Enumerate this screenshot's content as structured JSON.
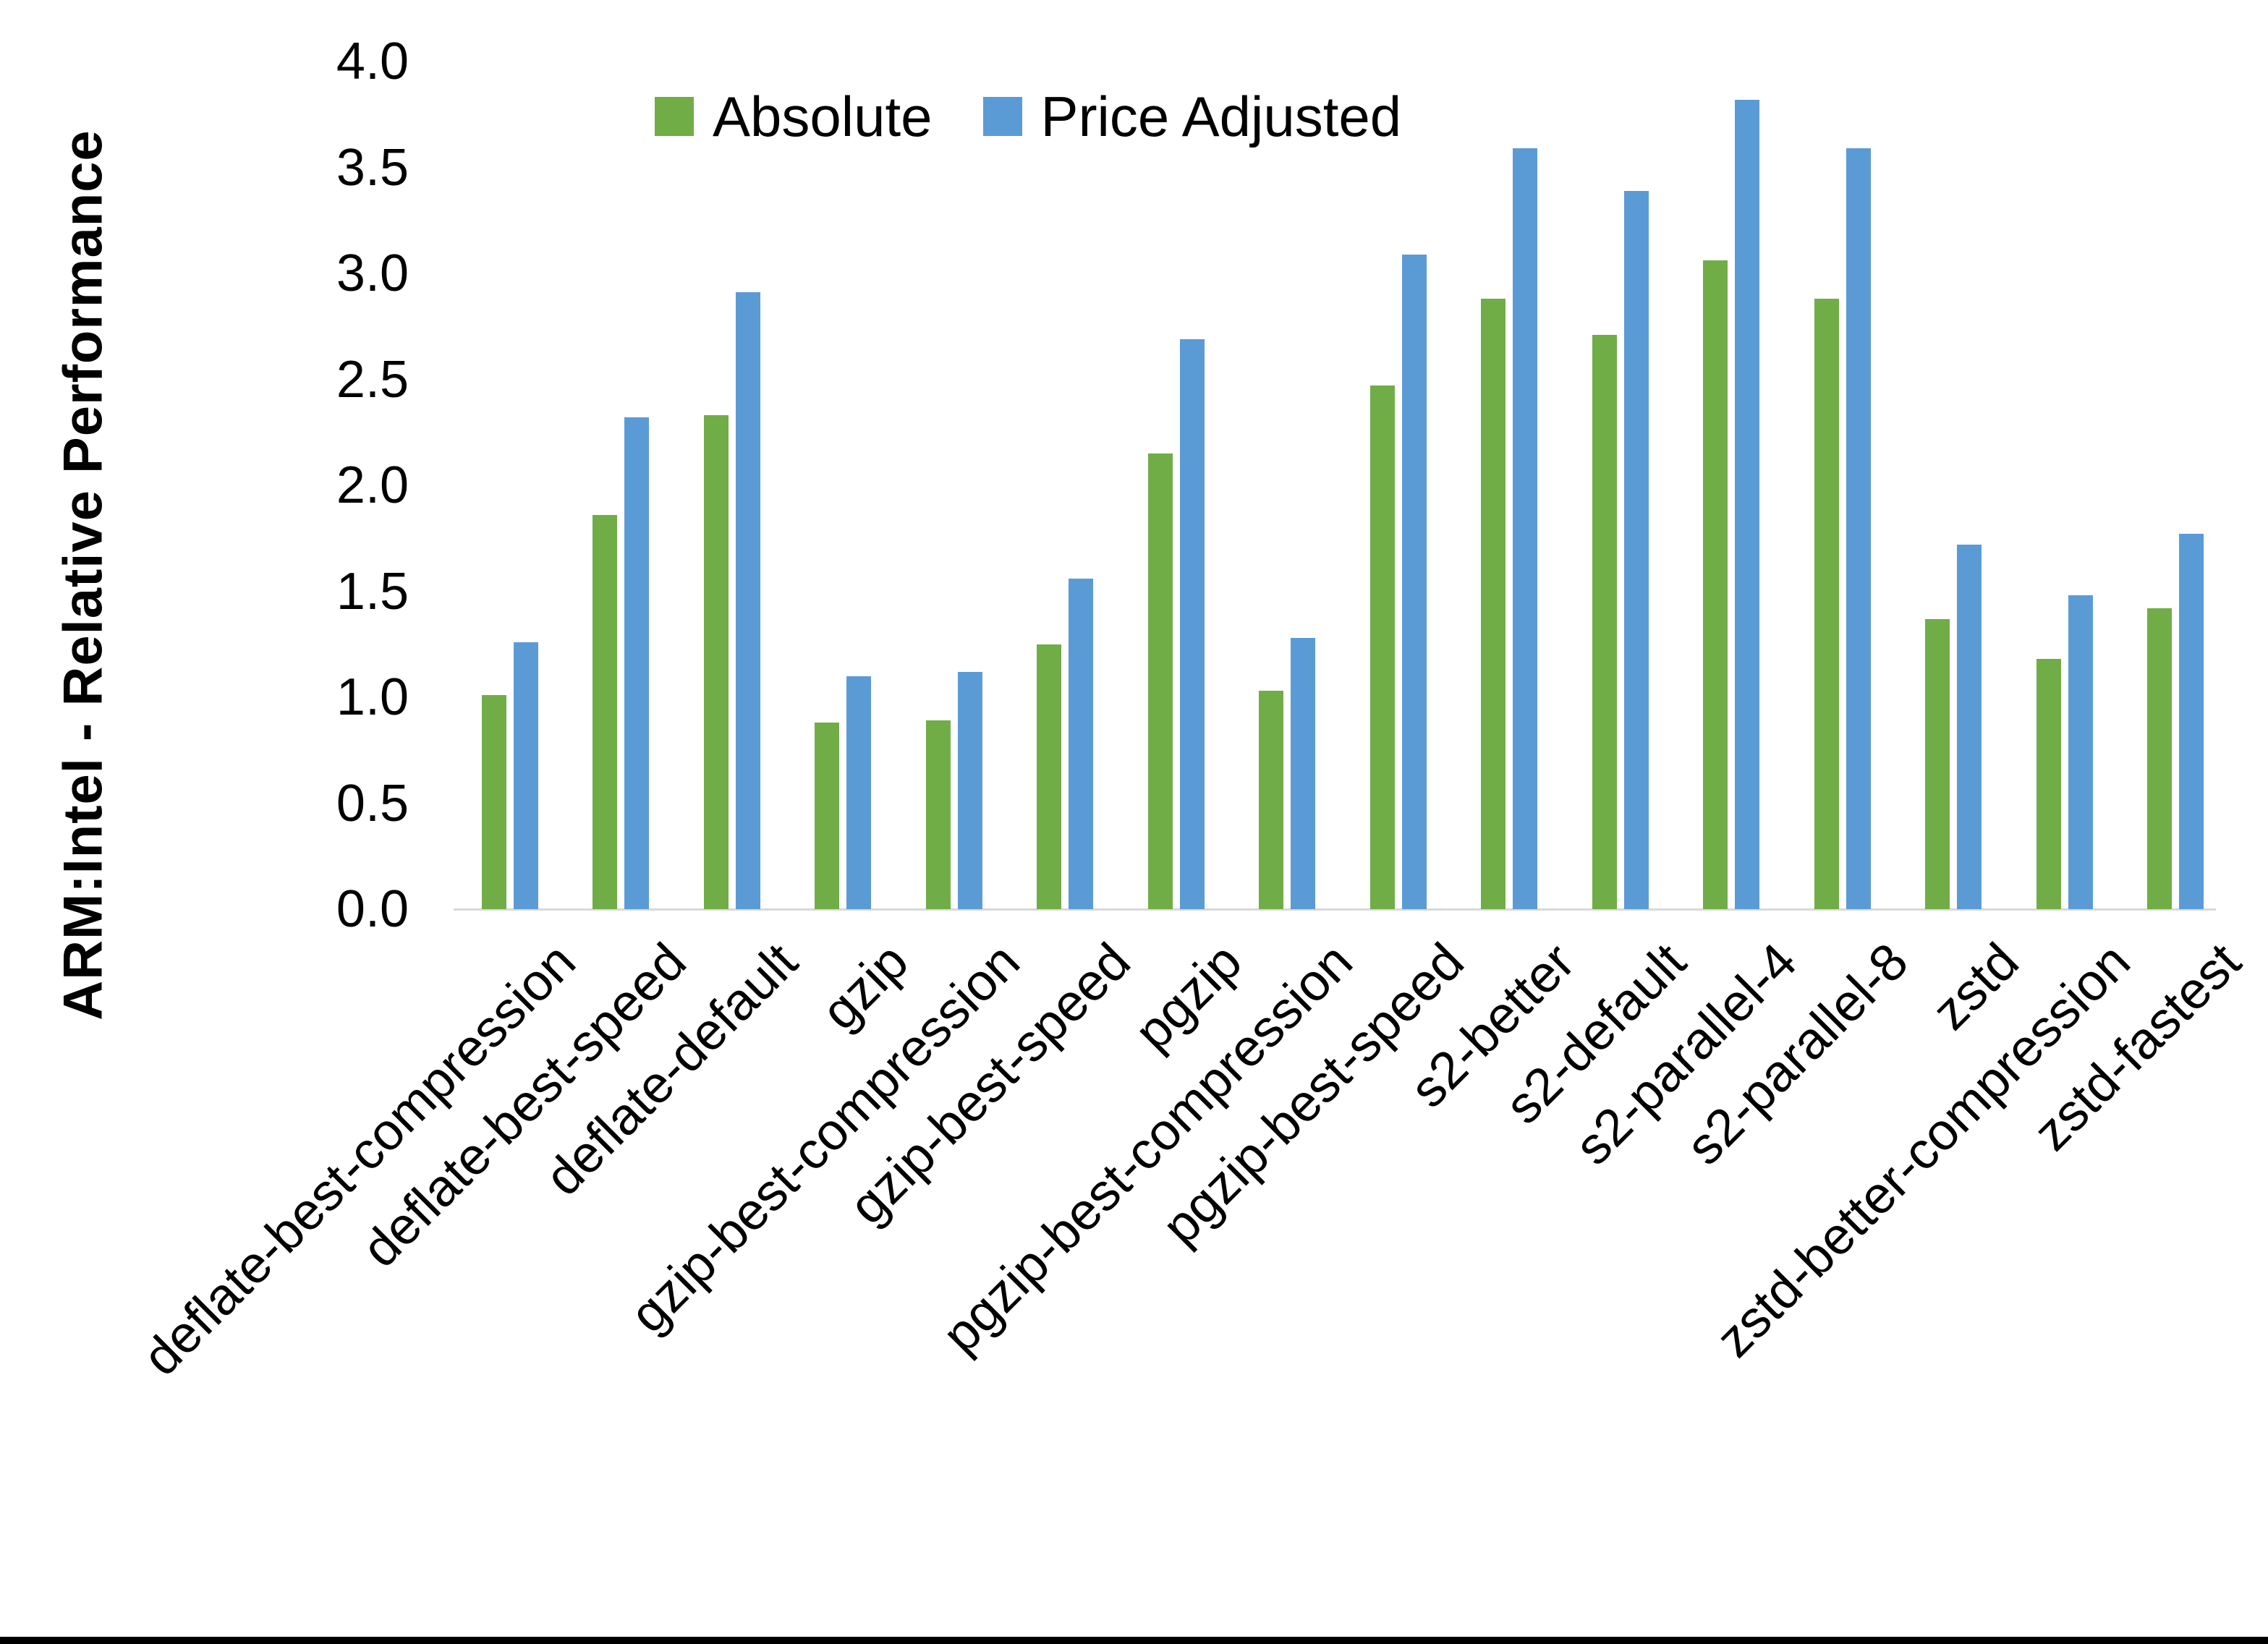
{
  "chart_data": {
    "type": "bar",
    "title": "",
    "ylabel": "ARM:Intel - Relative Performance",
    "xlabel": "",
    "ylim": [
      0.0,
      4.0
    ],
    "ytick_step": 0.5,
    "ytick_labels": [
      "0.0",
      "0.5",
      "1.0",
      "1.5",
      "2.0",
      "2.5",
      "3.0",
      "3.5",
      "4.0"
    ],
    "grid": false,
    "legend_position": "top-center",
    "axis_line_color": "#d9d9d9",
    "background_color": "#ffffff",
    "categories": [
      "deflate-best-compression",
      "deflate-best-speed",
      "deflate-default",
      "gzip",
      "gzip-best-compression",
      "gzip-best-speed",
      "pgzip",
      "pgzip-best-compression",
      "pgzip-best-speed",
      "s2-better",
      "s2-default",
      "s2-parallel-4",
      "s2-parallel-8",
      "zstd",
      "zstd-better-compression",
      "zstd-fastest"
    ],
    "series": [
      {
        "name": "Absolute",
        "color": "#70AD47",
        "values": [
          1.01,
          1.86,
          2.33,
          0.88,
          0.89,
          1.25,
          2.15,
          1.03,
          2.47,
          2.88,
          2.71,
          3.06,
          2.88,
          1.37,
          1.18,
          1.42
        ]
      },
      {
        "name": "Price Adjusted",
        "color": "#5B9BD5",
        "values": [
          1.26,
          2.32,
          2.91,
          1.1,
          1.12,
          1.56,
          2.69,
          1.28,
          3.09,
          3.59,
          3.39,
          3.82,
          3.59,
          1.72,
          1.48,
          1.77
        ]
      }
    ]
  }
}
